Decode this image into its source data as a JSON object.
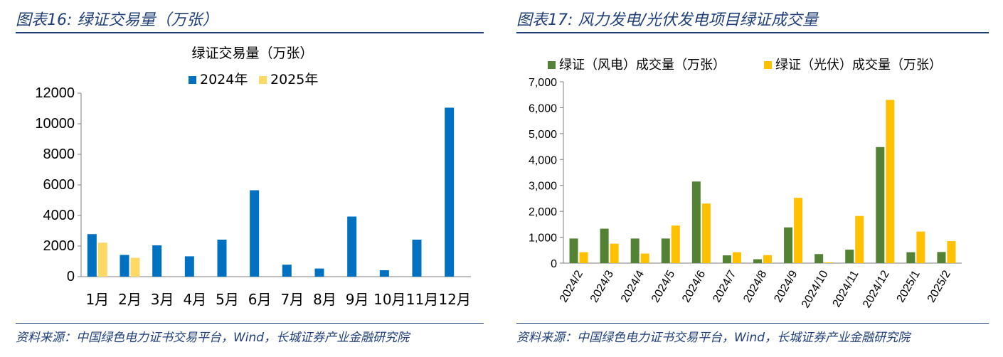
{
  "panels": {
    "left": {
      "figure_title": "图表16: 绿证交易量（万张）",
      "source": "资料来源：中国绿色电力证书交易平台，Wind，长城证券产业金融研究院"
    },
    "right": {
      "figure_title": "图表17: 风力发电/光伏发电项目绿证成交量",
      "source": "资料来源：中国绿色电力证书交易平台，Wind，长城证券产业金融研究院"
    }
  },
  "chart_data": [
    {
      "type": "bar",
      "title": "绿证交易量（万张）",
      "categories": [
        "1月",
        "2月",
        "3月",
        "4月",
        "5月",
        "6月",
        "7月",
        "8月",
        "9月",
        "10月",
        "11月",
        "12月"
      ],
      "series": [
        {
          "name": "2024年",
          "color": "#0070c0",
          "values": [
            2780,
            1420,
            2050,
            1330,
            2420,
            5650,
            780,
            530,
            3930,
            420,
            2420,
            11050
          ]
        },
        {
          "name": "2025年",
          "color": "#ffd966",
          "values": [
            2220,
            1230,
            null,
            null,
            null,
            null,
            null,
            null,
            null,
            null,
            null,
            null
          ]
        }
      ],
      "yticks": [
        "0",
        "2000",
        "4000",
        "6000",
        "8000",
        "10000",
        "12000"
      ],
      "ylim": [
        0,
        12000
      ],
      "legend": "top-center"
    },
    {
      "type": "bar",
      "categories": [
        "2024/2",
        "2024/3",
        "2024/4",
        "2024/5",
        "2024/6",
        "2024/7",
        "2024/8",
        "2024/9",
        "2024/10",
        "2024/11",
        "2024/12",
        "2025/1",
        "2025/2"
      ],
      "series": [
        {
          "name": "绿证（风电）成交量（万张）",
          "color": "#548235",
          "values": [
            950,
            1330,
            950,
            950,
            3150,
            300,
            150,
            1380,
            350,
            520,
            4480,
            420,
            430
          ]
        },
        {
          "name": "绿证（光伏）成交量（万张）",
          "color": "#ffc000",
          "values": [
            420,
            750,
            370,
            1450,
            2300,
            420,
            310,
            2520,
            30,
            1820,
            6300,
            1220,
            850
          ]
        }
      ],
      "yticks": [
        "0",
        "1,000",
        "2,000",
        "3,000",
        "4,000",
        "5,000",
        "6,000",
        "7,000"
      ],
      "ylim": [
        0,
        7000
      ],
      "legend": "top"
    }
  ]
}
